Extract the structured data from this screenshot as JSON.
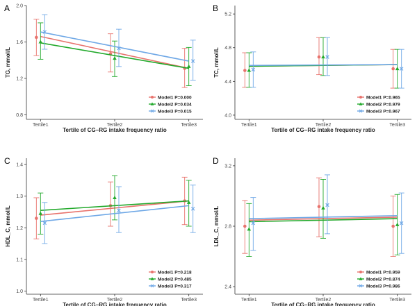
{
  "chart_data": [
    {
      "panel_letter": "A",
      "type": "line",
      "ylabel": "TG, mmol/L",
      "xlabel": "Tertile of CG−RG intake frequency ratio",
      "categories": [
        "Tertile1",
        "Tertile2",
        "Tertile3"
      ],
      "ylim": [
        0.75,
        2.0
      ],
      "yticks": [
        "0.8",
        "1.2",
        "1.6",
        "2.0"
      ],
      "ytick_values": [
        0.8,
        1.2,
        1.6,
        2.0
      ],
      "series": [
        {
          "name": "Model1",
          "label": "Model1 P=0.000",
          "color": "#e8736d",
          "marker": "circle",
          "values": [
            1.65,
            1.47,
            1.31
          ],
          "lower": [
            1.45,
            1.27,
            1.1
          ],
          "upper": [
            1.85,
            1.69,
            1.53
          ],
          "fit": [
            1.66,
            1.31
          ]
        },
        {
          "name": "Model2",
          "label": "Model2 P=0.034",
          "color": "#22a92b",
          "marker": "triangle",
          "values": [
            1.6,
            1.42,
            1.33
          ],
          "lower": [
            1.41,
            1.22,
            1.12
          ],
          "upper": [
            1.81,
            1.61,
            1.54
          ],
          "fit": [
            1.59,
            1.31
          ]
        },
        {
          "name": "Model3",
          "label": "Model3 P=0.015",
          "color": "#6fa8e6",
          "marker": "x",
          "values": [
            1.71,
            1.53,
            1.39
          ],
          "lower": [
            1.52,
            1.33,
            1.18
          ],
          "upper": [
            1.9,
            1.74,
            1.62
          ],
          "fit": [
            1.71,
            1.39
          ]
        }
      ]
    },
    {
      "panel_letter": "B",
      "type": "line",
      "ylabel": "TC, mmol/L",
      "xlabel": "Tertile of CG−RG intake frequency ratio",
      "categories": [
        "Tertile1",
        "Tertile2",
        "Tertile3"
      ],
      "ylim": [
        3.95,
        5.3
      ],
      "yticks": [
        "4.0",
        "4.4",
        "4.8",
        "5.2"
      ],
      "ytick_values": [
        4.0,
        4.4,
        4.8,
        5.2
      ],
      "series": [
        {
          "name": "Model1",
          "label": "Model1 P=0.965",
          "color": "#e8736d",
          "marker": "circle",
          "values": [
            4.53,
            4.69,
            4.55
          ],
          "lower": [
            4.33,
            4.48,
            4.32
          ],
          "upper": [
            4.74,
            4.92,
            4.78
          ],
          "fit": [
            4.58,
            4.6
          ]
        },
        {
          "name": "Model2",
          "label": "Model2 P=0.979",
          "color": "#22a92b",
          "marker": "triangle",
          "values": [
            4.53,
            4.69,
            4.55
          ],
          "lower": [
            4.33,
            4.47,
            4.32
          ],
          "upper": [
            4.74,
            4.92,
            4.78
          ],
          "fit": [
            4.58,
            4.6
          ]
        },
        {
          "name": "Model3",
          "label": "Model3 P=0.967",
          "color": "#6fa8e6",
          "marker": "x",
          "values": [
            4.54,
            4.69,
            4.55
          ],
          "lower": [
            4.33,
            4.47,
            4.32
          ],
          "upper": [
            4.75,
            4.92,
            4.78
          ],
          "fit": [
            4.59,
            4.6
          ]
        }
      ]
    },
    {
      "panel_letter": "C",
      "type": "line",
      "ylabel": "HDL_C, mmol/L",
      "xlabel": "Tertile of CG−RG intake frequency ratio",
      "categories": [
        "Tertile1",
        "Tertile2",
        "Tertile3"
      ],
      "ylim": [
        0.99,
        1.42
      ],
      "yticks": [
        "1.0",
        "1.1",
        "1.2",
        "1.3",
        "1.4"
      ],
      "ytick_values": [
        1.0,
        1.1,
        1.2,
        1.3,
        1.4
      ],
      "series": [
        {
          "name": "Model1",
          "label": "Model1 P=0.218",
          "color": "#e8736d",
          "marker": "circle",
          "values": [
            1.23,
            1.27,
            1.285
          ],
          "lower": [
            1.165,
            1.205,
            1.21
          ],
          "upper": [
            1.295,
            1.345,
            1.36
          ],
          "fit": [
            1.24,
            1.285
          ]
        },
        {
          "name": "Model2",
          "label": "Model2 P=0.485",
          "color": "#22a92b",
          "marker": "triangle",
          "values": [
            1.245,
            1.295,
            1.28
          ],
          "lower": [
            1.18,
            1.225,
            1.205
          ],
          "upper": [
            1.31,
            1.365,
            1.35
          ],
          "fit": [
            1.255,
            1.285
          ]
        },
        {
          "name": "Model3",
          "label": "Model3 P=0.317",
          "color": "#6fa8e6",
          "marker": "x",
          "values": [
            1.215,
            1.255,
            1.26
          ],
          "lower": [
            1.15,
            1.185,
            1.185
          ],
          "upper": [
            1.28,
            1.33,
            1.335
          ],
          "fit": [
            1.22,
            1.27
          ]
        }
      ]
    },
    {
      "panel_letter": "D",
      "type": "line",
      "ylabel": "LDL_C, mmol/L",
      "xlabel": "Tertile of CG−RG intake frequency ratio",
      "categories": [
        "Tertile1",
        "Tertile2",
        "Tertile3"
      ],
      "ylim": [
        2.35,
        3.25
      ],
      "yticks": [
        "2.4",
        "2.8",
        "3.2"
      ],
      "ytick_values": [
        2.4,
        2.8,
        3.2
      ],
      "series": [
        {
          "name": "Model1",
          "label": "Model1 P=0.959",
          "color": "#e8736d",
          "marker": "circle",
          "values": [
            2.8,
            2.93,
            2.8
          ],
          "lower": [
            2.62,
            2.73,
            2.6
          ],
          "upper": [
            2.97,
            3.12,
            3.0
          ],
          "fit": [
            2.84,
            2.86
          ]
        },
        {
          "name": "Model2",
          "label": "Model2 P=0.874",
          "color": "#22a92b",
          "marker": "triangle",
          "values": [
            2.78,
            2.92,
            2.81
          ],
          "lower": [
            2.6,
            2.72,
            2.61
          ],
          "upper": [
            2.95,
            3.11,
            3.01
          ],
          "fit": [
            2.83,
            2.85
          ]
        },
        {
          "name": "Model3",
          "label": "Model3 P=0.986",
          "color": "#6fa8e6",
          "marker": "x",
          "values": [
            2.82,
            2.94,
            2.82
          ],
          "lower": [
            2.64,
            2.75,
            2.62
          ],
          "upper": [
            2.99,
            3.14,
            3.02
          ],
          "fit": [
            2.85,
            2.87
          ]
        }
      ]
    }
  ]
}
